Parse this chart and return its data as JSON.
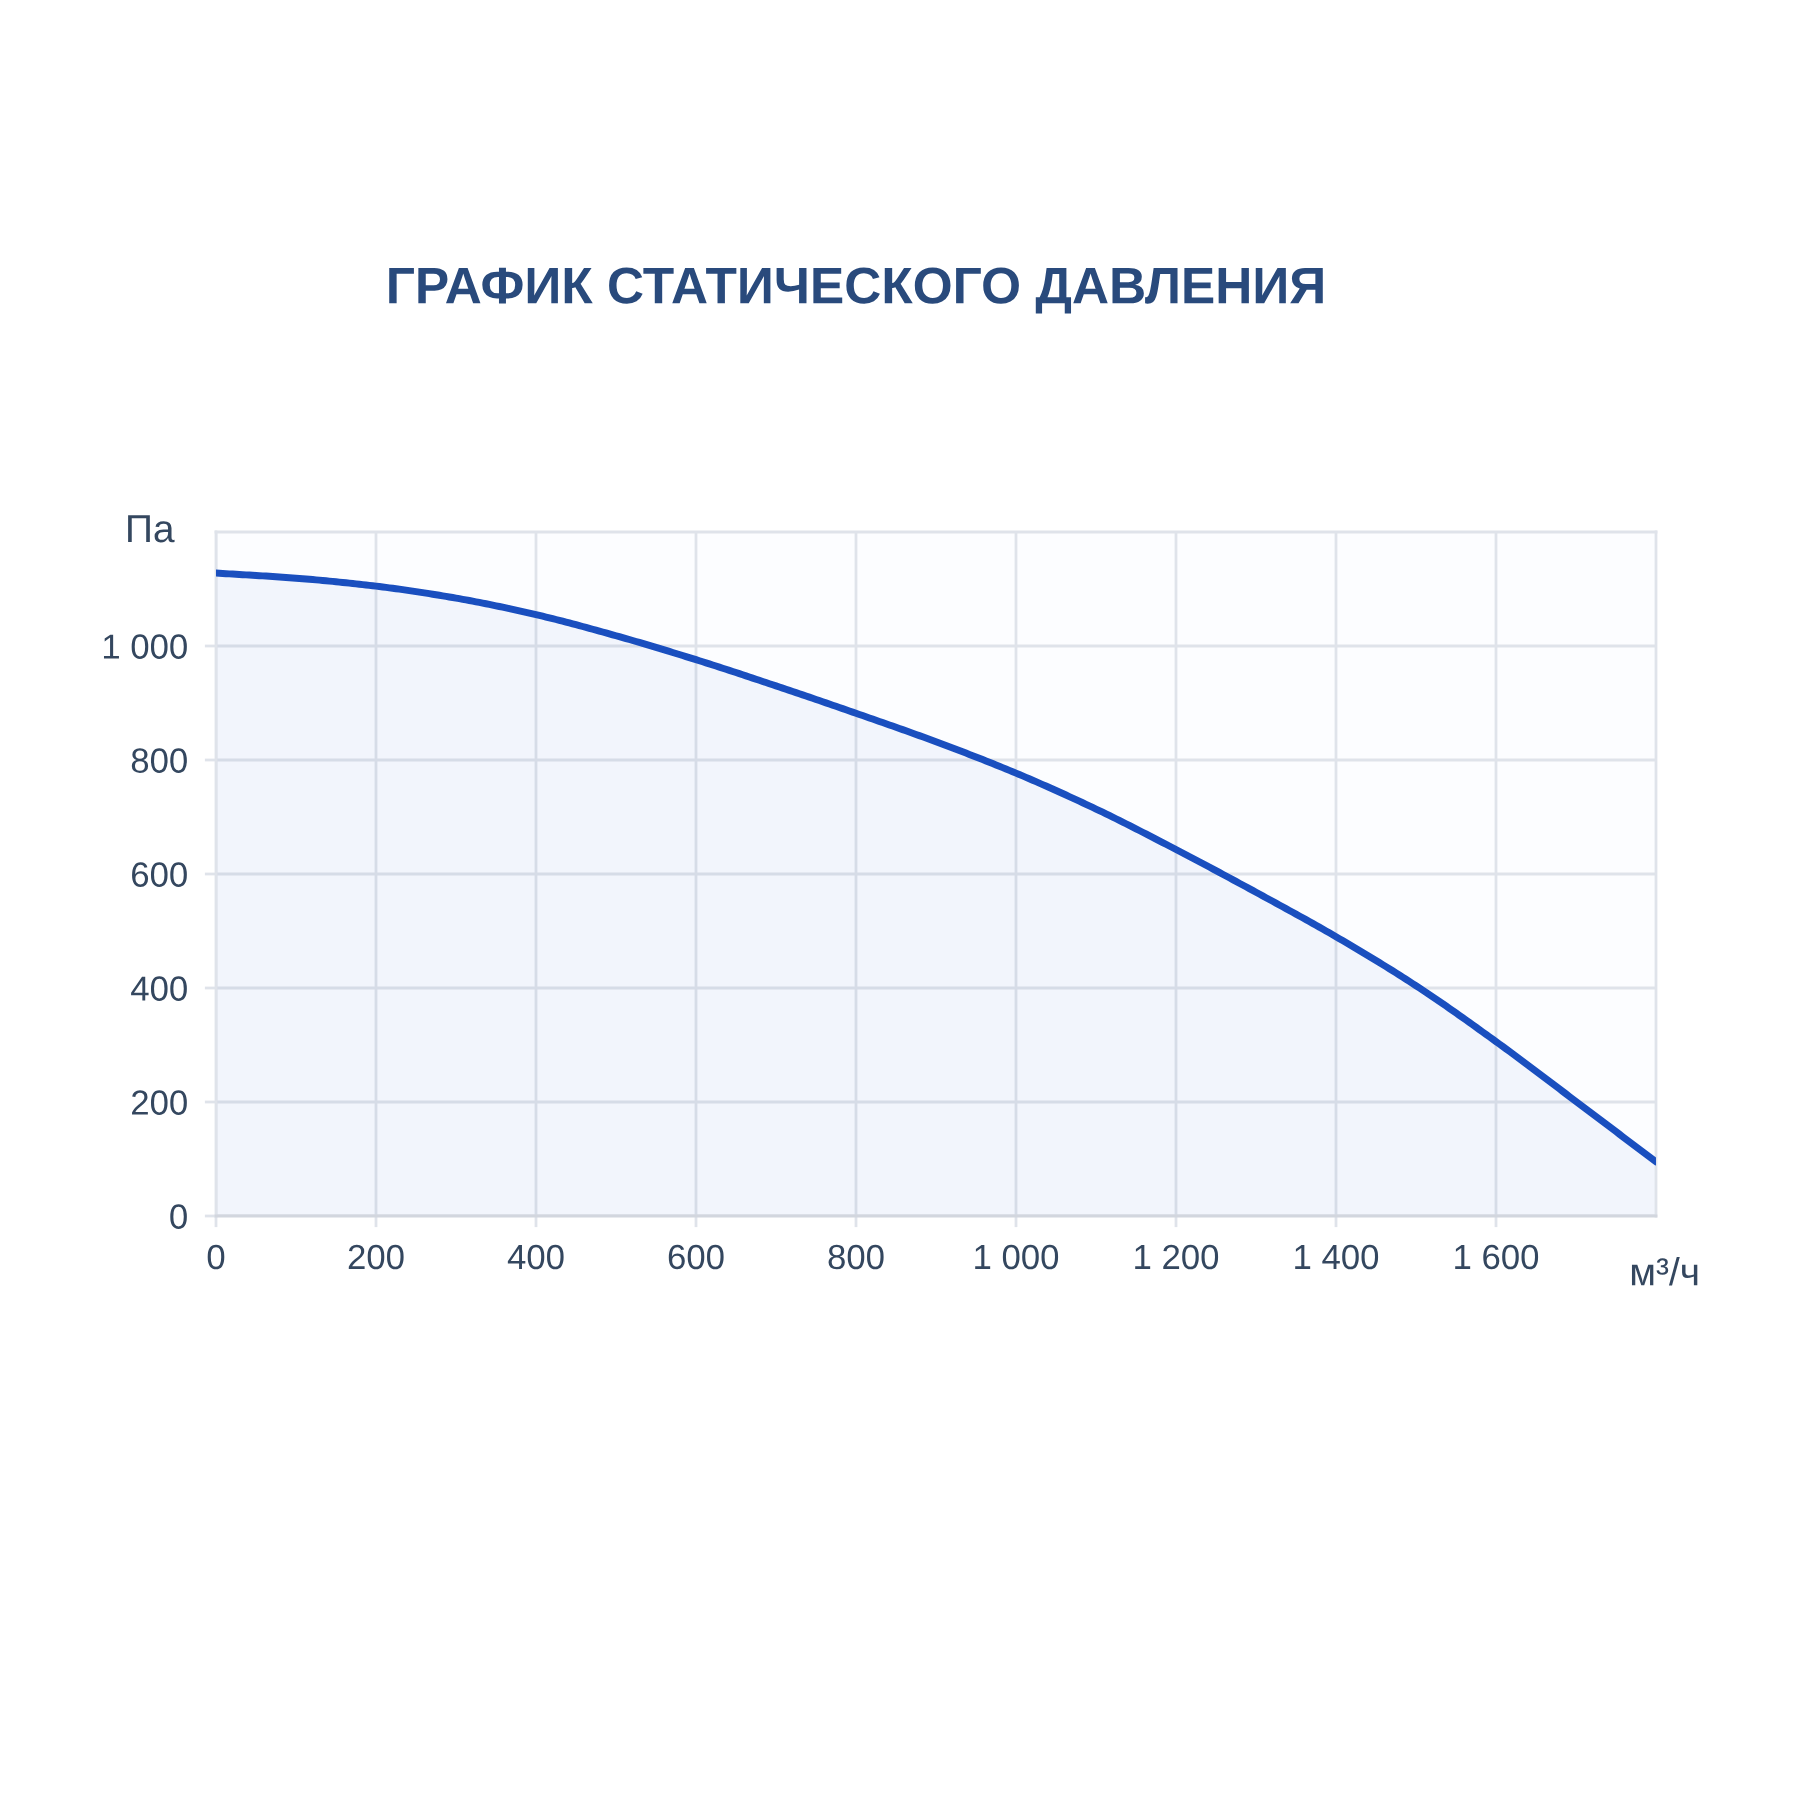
{
  "chart_data": {
    "type": "area",
    "title": "ГРАФИК СТАТИЧЕСКОГО ДАВЛЕНИЯ",
    "xlabel": "м³/ч",
    "ylabel": "Па",
    "x": [
      0,
      100,
      200,
      300,
      400,
      500,
      600,
      700,
      800,
      900,
      1000,
      1100,
      1200,
      1300,
      1400,
      1500,
      1600,
      1700,
      1800
    ],
    "series": [
      {
        "color": "#1a4fbf",
        "values": [
          1128,
          1119,
          1105,
          1084,
          1055,
          1018,
          976,
          930,
          882,
          832,
          777,
          714,
          643,
          568,
          490,
          404,
          306,
          201,
          95
        ]
      }
    ],
    "xlim": [
      0,
      1800
    ],
    "xticks": [
      0,
      200,
      400,
      600,
      800,
      {
        "value": 1000,
        "label": "1 000"
      },
      {
        "value": 1200,
        "label": "1 200"
      },
      {
        "value": 1400,
        "label": "1 400"
      },
      {
        "value": 1600,
        "label": "1 600"
      }
    ],
    "ylim": [
      0,
      1200
    ],
    "yticks": [
      0,
      200,
      400,
      600,
      800,
      {
        "value": 1000,
        "label": "1 000"
      }
    ],
    "grid": true
  }
}
